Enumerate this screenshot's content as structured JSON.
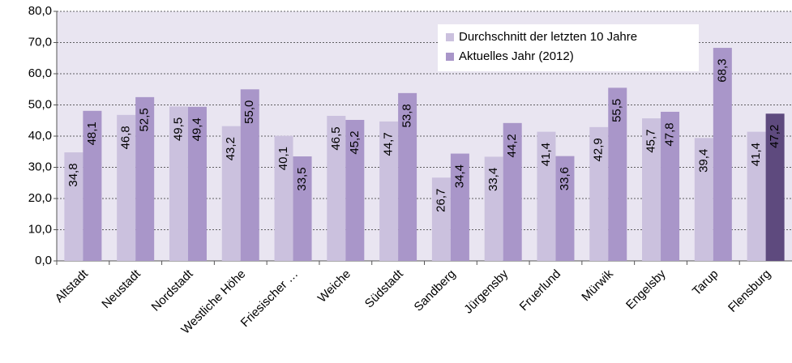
{
  "chart_data": {
    "type": "bar",
    "categories": [
      "Altstadt",
      "Neustadt",
      "Nordstadt",
      "Westliche Höhe",
      "Friesischer …",
      "Weiche",
      "Südstadt",
      "Sandberg",
      "Jürgensby",
      "Fruerlund",
      "Mürwik",
      "Engelsby",
      "Tarup",
      "Flensburg"
    ],
    "series": [
      {
        "name": "Durchschnitt der letzten 10 Jahre",
        "color": "#cbc1de",
        "values": [
          34.8,
          46.8,
          49.5,
          43.2,
          40.1,
          46.5,
          44.7,
          26.7,
          33.4,
          41.4,
          42.9,
          45.7,
          39.4,
          41.4
        ],
        "value_labels": [
          "34,8",
          "46,8",
          "49,5",
          "43,2",
          "40,1",
          "46,5",
          "44,7",
          "26,7",
          "33,4",
          "41,4",
          "42,9",
          "45,7",
          "39,4",
          "41,4"
        ]
      },
      {
        "name": "Aktuelles Jahr (2012)",
        "color": "#a996c9",
        "colors": [
          "#a996c9",
          "#a996c9",
          "#a996c9",
          "#a996c9",
          "#a996c9",
          "#a996c9",
          "#a996c9",
          "#a996c9",
          "#a996c9",
          "#a996c9",
          "#a996c9",
          "#a996c9",
          "#a996c9",
          "#5e4a7e"
        ],
        "values": [
          48.1,
          52.5,
          49.4,
          55.0,
          33.5,
          45.2,
          53.8,
          34.4,
          44.2,
          33.6,
          55.5,
          47.8,
          68.3,
          47.2
        ],
        "value_labels": [
          "48,1",
          "52,5",
          "49,4",
          "55,0",
          "33,5",
          "45,2",
          "53,8",
          "34,4",
          "44,2",
          "33,6",
          "55,5",
          "47,8",
          "68,3",
          "47,2"
        ]
      }
    ],
    "ylim": [
      0,
      80
    ],
    "yticks": [
      {
        "value": 0,
        "label": "0,0"
      },
      {
        "value": 10,
        "label": "10,0"
      },
      {
        "value": 20,
        "label": "20,0"
      },
      {
        "value": 30,
        "label": "30,0"
      },
      {
        "value": 40,
        "label": "40,0"
      },
      {
        "value": 50,
        "label": "50,0"
      },
      {
        "value": 60,
        "label": "60,0"
      },
      {
        "value": 70,
        "label": "70,0"
      },
      {
        "value": 80,
        "label": "80,0"
      }
    ],
    "grid": true,
    "legend": "top-right"
  }
}
